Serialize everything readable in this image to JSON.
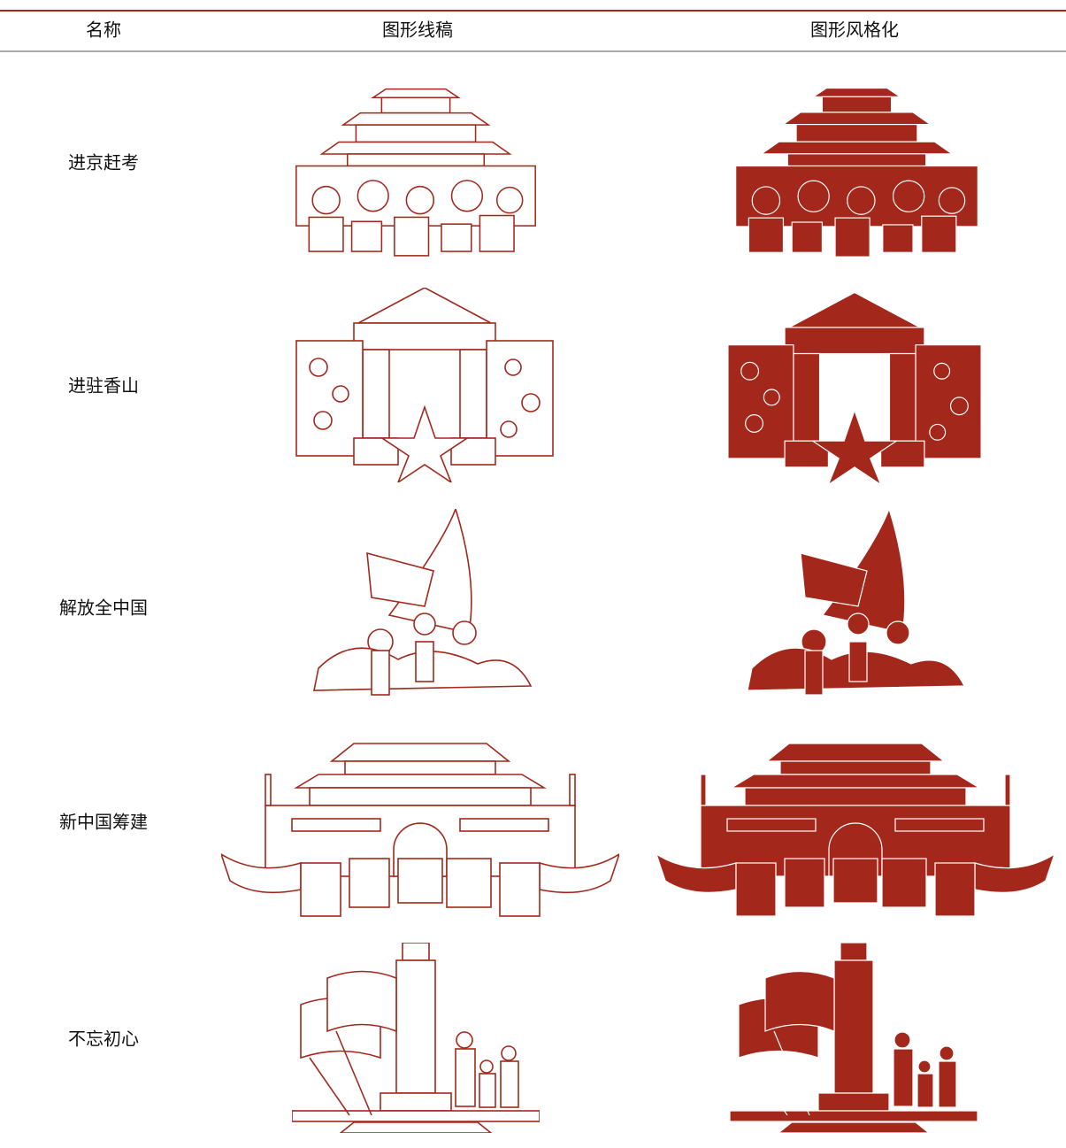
{
  "table": {
    "header": [
      "名称",
      "图形线稿",
      "图形风格化"
    ],
    "rows": [
      "进京赶考",
      "进驻香山",
      "解放全中国",
      "新中国筹建",
      "不忘初心"
    ]
  }
}
